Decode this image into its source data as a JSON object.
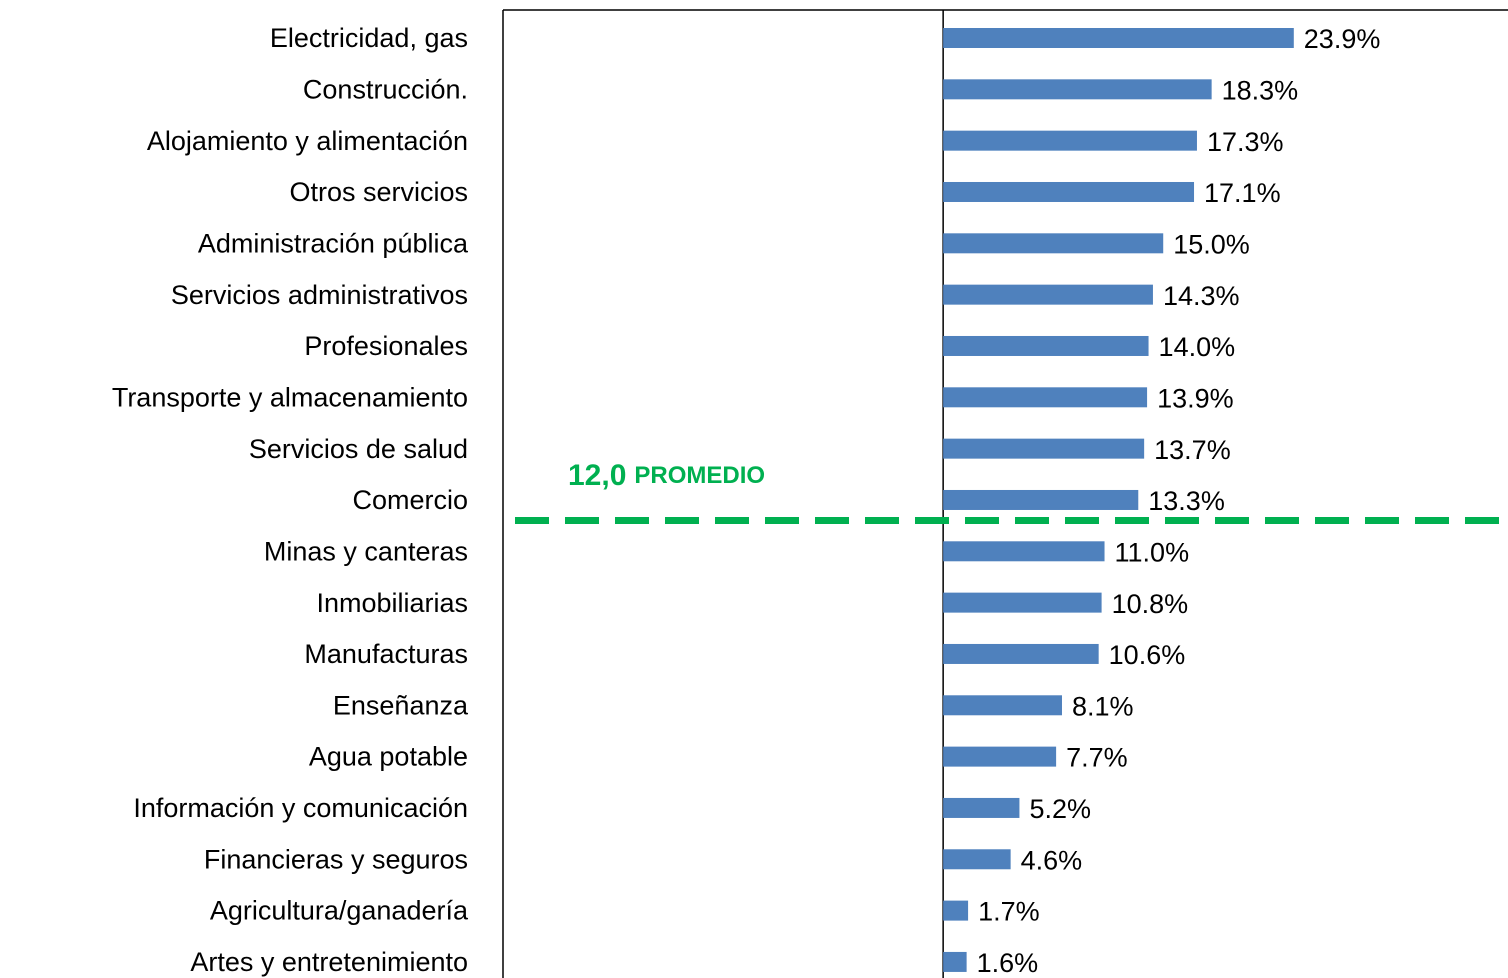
{
  "chart_data": {
    "type": "barh",
    "categories": [
      "Electricidad, gas",
      "Construcción.",
      "Alojamiento y alimentación",
      "Otros servicios",
      "Administración pública",
      "Servicios administrativos",
      "Profesionales",
      "Transporte y almacenamiento",
      "Servicios de salud",
      "Comercio",
      "Minas y canteras",
      "Inmobiliarias",
      "Manufacturas",
      "Enseñanza",
      "Agua potable",
      "Información y comunicación",
      "Financieras y seguros",
      "Agricultura/ganadería",
      "Artes y entretenimiento"
    ],
    "values": [
      23.9,
      18.3,
      17.3,
      17.1,
      15.0,
      14.3,
      14.0,
      13.9,
      13.7,
      13.3,
      11.0,
      10.8,
      10.6,
      8.1,
      7.7,
      5.2,
      4.6,
      1.7,
      1.6
    ],
    "value_labels": [
      "23.9%",
      "18.3%",
      "17.3%",
      "17.1%",
      "15.0%",
      "14.3%",
      "14.0%",
      "13.9%",
      "13.7%",
      "13.3%",
      "11.0%",
      "10.8%",
      "10.6%",
      "8.1%",
      "7.7%",
      "5.2%",
      "4.6%",
      "1.7%",
      "1.6%"
    ],
    "color": "#4f81bd",
    "xlim": [
      -30,
      38.5
    ],
    "annotations": [
      {
        "text": "12,0"
      },
      {
        "text": "PROMEDIO"
      }
    ],
    "annotation_color": "#00b050"
  }
}
